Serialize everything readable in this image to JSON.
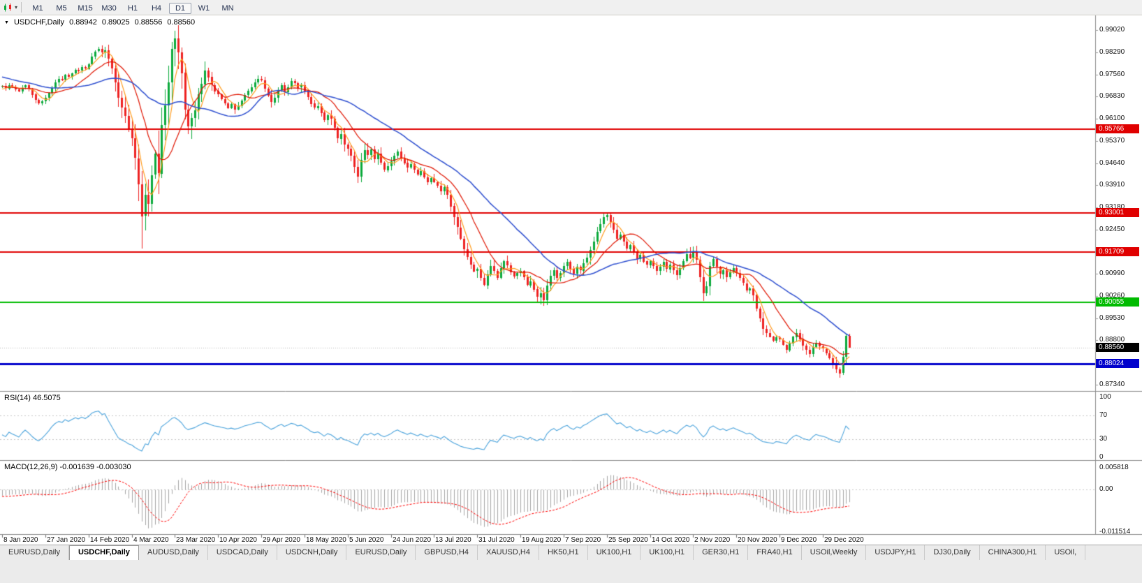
{
  "icons": {
    "menu_triangle": "▼",
    "dropdown_caret": "▾"
  },
  "toolbar": {
    "timeframes": [
      "M1",
      "M5",
      "M15",
      "M30",
      "H1",
      "H4",
      "D1",
      "W1",
      "MN"
    ],
    "active_timeframe": "D1"
  },
  "chart": {
    "title_symbol": "USDCHF,Daily",
    "ohlc": {
      "open": "0.88942",
      "high": "0.89025",
      "low": "0.88556",
      "close": "0.88560"
    },
    "price_axis": {
      "ticks": [
        "0.99020",
        "0.98290",
        "0.97560",
        "0.96830",
        "0.96100",
        "0.95370",
        "0.94640",
        "0.93910",
        "0.93180",
        "0.92450",
        "0.91720",
        "0.90990",
        "0.90260",
        "0.89530",
        "0.88800",
        "0.88070",
        "0.87340"
      ]
    },
    "levels": [
      {
        "label": "0.95766",
        "price": 0.95766,
        "color": "#e00000",
        "thickness": 2
      },
      {
        "label": "0.93001",
        "price": 0.93001,
        "color": "#e00000",
        "thickness": 2
      },
      {
        "label": "0.91709",
        "price": 0.91709,
        "color": "#e00000",
        "thickness": 2
      },
      {
        "label": "0.90055",
        "price": 0.90055,
        "color": "#00bb00",
        "thickness": 2
      },
      {
        "label": "0.88024",
        "price": 0.88024,
        "color": "#0000cc",
        "thickness": 3
      }
    ],
    "current_price": {
      "label": "0.88560",
      "value": 0.8856,
      "box_color": "#000000",
      "line_color": "#b8b8b8"
    },
    "dates": [
      "8 Jan 2020",
      "27 Jan 2020",
      "14 Feb 2020",
      "4 Mar 2020",
      "23 Mar 2020",
      "10 Apr 2020",
      "29 Apr 2020",
      "18 May 2020",
      "5 Jun 2020",
      "24 Jun 2020",
      "13 Jul 2020",
      "31 Jul 2020",
      "19 Aug 2020",
      "7 Sep 2020",
      "25 Sep 2020",
      "14 Oct 2020",
      "2 Nov 2020",
      "20 Nov 2020",
      "9 Dec 2020",
      "29 Dec 2020"
    ],
    "bars_per_label": 13
  },
  "chart_data": {
    "type": "candlestick",
    "symbol": "USDCHF",
    "timeframe": "Daily",
    "price_range": [
      0.8713,
      0.9951
    ],
    "colors": {
      "up": "#0caa3c",
      "down": "#ee2222"
    },
    "prior_closes": [
      0.982,
      0.9815,
      0.9808,
      0.9812,
      0.98,
      0.9792,
      0.9785,
      0.9778,
      0.9782,
      0.977,
      0.9762,
      0.9775,
      0.9768,
      0.976,
      0.9752,
      0.9746,
      0.9738,
      0.973,
      0.9735,
      0.9725,
      0.9738,
      0.973,
      0.9742,
      0.9735,
      0.9728,
      0.9722,
      0.9728,
      0.972,
      0.9712,
      0.9705,
      0.9698,
      0.9702,
      0.9708,
      0.9715
    ],
    "closes": [
      0.9718,
      0.971,
      0.9722,
      0.9715,
      0.9708,
      0.97,
      0.9712,
      0.972,
      0.9708,
      0.969,
      0.9672,
      0.966,
      0.9668,
      0.968,
      0.9695,
      0.9712,
      0.973,
      0.9742,
      0.9738,
      0.9755,
      0.9748,
      0.976,
      0.9772,
      0.9768,
      0.978,
      0.9775,
      0.979,
      0.9815,
      0.9832,
      0.984,
      0.9828,
      0.9835,
      0.9808,
      0.9775,
      0.973,
      0.968,
      0.9647,
      0.962,
      0.9575,
      0.9545,
      0.948,
      0.9395,
      0.929,
      0.936,
      0.933,
      0.9425,
      0.9495,
      0.943,
      0.959,
      0.9655,
      0.973,
      0.984,
      0.9875,
      0.983,
      0.9762,
      0.964,
      0.9585,
      0.9612,
      0.9638,
      0.969,
      0.9725,
      0.977,
      0.9748,
      0.9722,
      0.9702,
      0.969,
      0.9675,
      0.9662,
      0.9645,
      0.9658,
      0.964,
      0.9652,
      0.967,
      0.9688,
      0.9702,
      0.9715,
      0.973,
      0.9742,
      0.9738,
      0.971,
      0.9688,
      0.9665,
      0.968,
      0.9705,
      0.9722,
      0.97,
      0.9715,
      0.9735,
      0.9728,
      0.9712,
      0.972,
      0.97,
      0.9682,
      0.966,
      0.9646,
      0.9652,
      0.963,
      0.9605,
      0.9622,
      0.961,
      0.958,
      0.9545,
      0.956,
      0.9525,
      0.9512,
      0.9488,
      0.9452,
      0.942,
      0.9475,
      0.9508,
      0.9492,
      0.951,
      0.9478,
      0.9496,
      0.9465,
      0.9442,
      0.9455,
      0.947,
      0.9488,
      0.9502,
      0.948,
      0.9465,
      0.9448,
      0.946,
      0.9442,
      0.9425,
      0.9438,
      0.9418,
      0.9402,
      0.9415,
      0.9402,
      0.939,
      0.9372,
      0.9385,
      0.936,
      0.9322,
      0.9285,
      0.9252,
      0.9215,
      0.918,
      0.9155,
      0.913,
      0.9108,
      0.9115,
      0.9085,
      0.9062,
      0.9098,
      0.9125,
      0.9108,
      0.9085,
      0.9118,
      0.9142,
      0.9128,
      0.9105,
      0.9092,
      0.9102,
      0.9108,
      0.9088,
      0.9062,
      0.9075,
      0.9048,
      0.9022,
      0.9035,
      0.9012,
      0.906,
      0.9092,
      0.911,
      0.9085,
      0.9102,
      0.9125,
      0.9138,
      0.9115,
      0.9098,
      0.9122,
      0.911,
      0.9135,
      0.9152,
      0.9178,
      0.9205,
      0.9238,
      0.9262,
      0.9285,
      0.9292,
      0.9268,
      0.9245,
      0.9215,
      0.9228,
      0.9205,
      0.9182,
      0.9195,
      0.917,
      0.9148,
      0.9162,
      0.914,
      0.9128,
      0.9142,
      0.9125,
      0.9108,
      0.9122,
      0.9138,
      0.9115,
      0.913,
      0.9112,
      0.9095,
      0.9118,
      0.9142,
      0.9165,
      0.9152,
      0.9168,
      0.9145,
      0.9088,
      0.9035,
      0.9058,
      0.9125,
      0.9148,
      0.9122,
      0.9098,
      0.9112,
      0.9088,
      0.9105,
      0.9118,
      0.9102,
      0.9085,
      0.9068,
      0.9045,
      0.9052,
      0.903,
      0.8985,
      0.8952,
      0.8918,
      0.8905,
      0.8892,
      0.8878,
      0.889,
      0.8882,
      0.8865,
      0.8848,
      0.887,
      0.8892,
      0.8905,
      0.8885,
      0.8862,
      0.8848,
      0.8835,
      0.8858,
      0.8872,
      0.886,
      0.8852,
      0.8838,
      0.8822,
      0.88,
      0.8785,
      0.8772,
      0.8825,
      0.8894,
      0.8856
    ],
    "wick_overrides": {
      "42": {
        "low": 0.9182
      },
      "52": {
        "high": 0.9901
      },
      "252": {
        "low": 0.8757
      },
      "255": {
        "open": 0.88942,
        "high": 0.89025,
        "low": 0.88556
      }
    },
    "moving_averages": [
      {
        "period": 5,
        "color": "#ff9d1e",
        "width": 1.2
      },
      {
        "period": 13,
        "color": "#e01400",
        "width": 1.2
      },
      {
        "period": 34,
        "color": "#2e4fd0",
        "width": 1.5
      }
    ]
  },
  "rsi": {
    "label": "RSI(14) 46.5075",
    "period": 14,
    "current": "46.5075",
    "color": "#4aa3dc",
    "scale": [
      {
        "label": "100",
        "value": 100
      },
      {
        "label": "70",
        "value": 70
      },
      {
        "label": "30",
        "value": 30
      },
      {
        "label": "0",
        "value": 0
      }
    ],
    "bands": [
      70,
      30
    ]
  },
  "macd": {
    "label": "MACD(12,26,9) -0.001639 -0.003030",
    "fast": 12,
    "slow": 26,
    "signal": 9,
    "histogram_color": "#a6a6a6",
    "signal_color": "#ff0000",
    "range": [
      -0.011514,
      0.005818
    ],
    "scale": [
      {
        "label": "0.005818",
        "value": 0.005818
      },
      {
        "label": "0.00",
        "value": 0
      },
      {
        "label": "-0.011514",
        "value": -0.011514
      }
    ]
  },
  "tabs": {
    "items": [
      {
        "label": "EURUSD,Daily"
      },
      {
        "label": "USDCHF,Daily",
        "active": true
      },
      {
        "label": "AUDUSD,Daily"
      },
      {
        "label": "USDCAD,Daily"
      },
      {
        "label": "USDCNH,Daily"
      },
      {
        "label": "EURUSD,Daily"
      },
      {
        "label": "GBPUSD,H4"
      },
      {
        "label": "XAUUSD,H4"
      },
      {
        "label": "HK50,H1"
      },
      {
        "label": "UK100,H1"
      },
      {
        "label": "UK100,H1"
      },
      {
        "label": "GER30,H1"
      },
      {
        "label": "FRA40,H1"
      },
      {
        "label": "USOil,Weekly"
      },
      {
        "label": "USDJPY,H1"
      },
      {
        "label": "DJ30,Daily"
      },
      {
        "label": "CHINA300,H1"
      },
      {
        "label": "USOil,"
      }
    ]
  }
}
